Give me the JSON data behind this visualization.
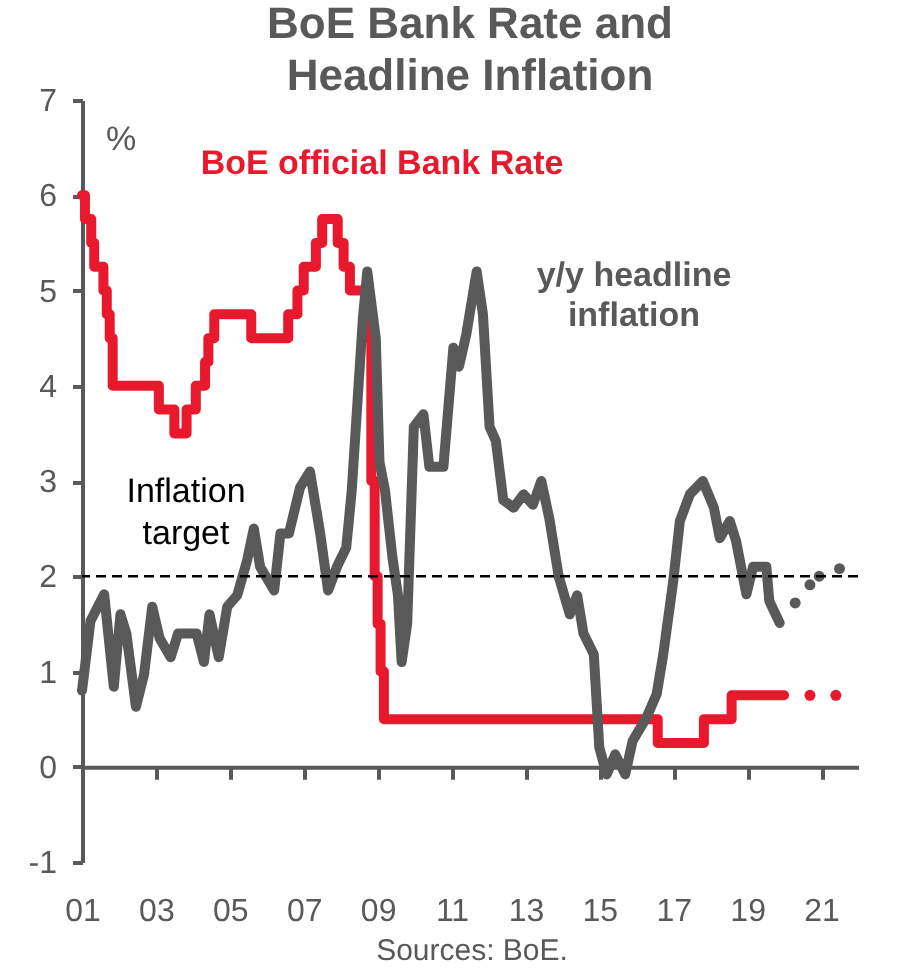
{
  "chart_data": {
    "type": "line",
    "title": "BoE Bank Rate and Headline Inflation",
    "ylabel": "%",
    "xlim": [
      2001,
      2022
    ],
    "xticks": [
      {
        "value": 2001,
        "label": "01"
      },
      {
        "value": 2003,
        "label": "03"
      },
      {
        "value": 2005,
        "label": "05"
      },
      {
        "value": 2007,
        "label": "07"
      },
      {
        "value": 2009,
        "label": "09"
      },
      {
        "value": 2011,
        "label": "11"
      },
      {
        "value": 2013,
        "label": "13"
      },
      {
        "value": 2015,
        "label": "15"
      },
      {
        "value": 2017,
        "label": "17"
      },
      {
        "value": 2019,
        "label": "19"
      },
      {
        "value": 2021,
        "label": "21"
      }
    ],
    "ylim": [
      -1,
      7
    ],
    "yticks": [
      -1,
      0,
      1,
      2,
      3,
      4,
      5,
      6,
      7
    ],
    "grid": false,
    "series": [
      {
        "name": "BoE official Bank Rate",
        "type": "step",
        "color": "#e8192c",
        "x": [
          2001.0,
          2001.08,
          2001.25,
          2001.33,
          2001.58,
          2001.67,
          2001.75,
          2001.83,
          2003.08,
          2003.5,
          2003.83,
          2004.08,
          2004.33,
          2004.42,
          2004.58,
          2005.58,
          2006.58,
          2006.83,
          2007.0,
          2007.33,
          2007.5,
          2007.92,
          2008.08,
          2008.25,
          2008.75,
          2008.83,
          2008.92,
          2009.0,
          2009.08,
          2009.17,
          2016.58,
          2017.83,
          2018.58,
          2020.0
        ],
        "values": [
          6.0,
          5.75,
          5.5,
          5.25,
          5.0,
          4.75,
          4.5,
          4.0,
          3.75,
          3.5,
          3.75,
          4.0,
          4.25,
          4.5,
          4.75,
          4.5,
          4.75,
          5.0,
          5.25,
          5.5,
          5.75,
          5.5,
          5.25,
          5.0,
          4.5,
          3.0,
          2.0,
          1.5,
          1.0,
          0.5,
          0.25,
          0.5,
          0.75,
          0.75
        ]
      },
      {
        "type": "scatter",
        "color": "#e8192c",
        "x": [
          2020.7,
          2021.4
        ],
        "values": [
          0.75,
          0.75
        ]
      },
      {
        "name": "y/y headline inflation",
        "type": "line",
        "color": "#595959",
        "x": [
          2001.0,
          2001.23,
          2001.6,
          2001.86,
          2002.04,
          2002.2,
          2002.46,
          2002.68,
          2002.9,
          2003.1,
          2003.4,
          2003.6,
          2004.1,
          2004.3,
          2004.45,
          2004.7,
          2004.93,
          2005.2,
          2005.47,
          2005.65,
          2005.82,
          2006.2,
          2006.37,
          2006.6,
          2006.9,
          2007.17,
          2007.45,
          2007.66,
          2007.9,
          2008.15,
          2008.3,
          2008.45,
          2008.6,
          2008.72,
          2008.95,
          2009.05,
          2009.2,
          2009.4,
          2009.55,
          2009.65,
          2009.8,
          2009.98,
          2010.24,
          2010.4,
          2010.78,
          2011.05,
          2011.2,
          2011.4,
          2011.68,
          2011.85,
          2012.03,
          2012.2,
          2012.4,
          2012.68,
          2012.95,
          2013.2,
          2013.43,
          2013.65,
          2013.9,
          2014.2,
          2014.4,
          2014.57,
          2014.85,
          2015.0,
          2015.2,
          2015.43,
          2015.7,
          2015.9,
          2016.28,
          2016.55,
          2016.73,
          2017.0,
          2017.18,
          2017.45,
          2017.8,
          2018.1,
          2018.26,
          2018.53,
          2018.7,
          2018.98,
          2019.16,
          2019.52,
          2019.6,
          2019.88
        ],
        "values": [
          0.8,
          1.53,
          1.81,
          0.84,
          1.6,
          1.4,
          0.63,
          0.97,
          1.68,
          1.35,
          1.15,
          1.4,
          1.4,
          1.1,
          1.6,
          1.15,
          1.68,
          1.8,
          2.17,
          2.5,
          2.1,
          1.85,
          2.45,
          2.45,
          2.93,
          3.1,
          2.44,
          1.85,
          2.1,
          2.3,
          2.9,
          3.8,
          4.7,
          5.2,
          4.5,
          3.2,
          2.9,
          2.2,
          1.8,
          1.1,
          1.5,
          3.57,
          3.7,
          3.15,
          3.15,
          4.4,
          4.2,
          4.54,
          5.2,
          4.75,
          3.57,
          3.42,
          2.8,
          2.72,
          2.86,
          2.75,
          3.0,
          2.6,
          2.0,
          1.6,
          1.8,
          1.4,
          1.18,
          0.2,
          -0.08,
          0.13,
          -0.08,
          0.27,
          0.52,
          0.76,
          1.18,
          1.95,
          2.58,
          2.86,
          3.0,
          2.72,
          2.4,
          2.58,
          2.37,
          1.81,
          2.1,
          2.1,
          1.74,
          1.51
        ]
      },
      {
        "type": "scatter",
        "color": "#595959",
        "x": [
          2020.3,
          2020.7,
          2020.95,
          2021.5
        ],
        "values": [
          1.72,
          1.91,
          2.0,
          2.08
        ]
      }
    ],
    "ref_lines": [
      {
        "axis": "y",
        "value": 2,
        "label": "Inflation target",
        "color": "#000000",
        "line_style": "dashed"
      }
    ],
    "annotations": [
      "Sources: BoE."
    ]
  }
}
